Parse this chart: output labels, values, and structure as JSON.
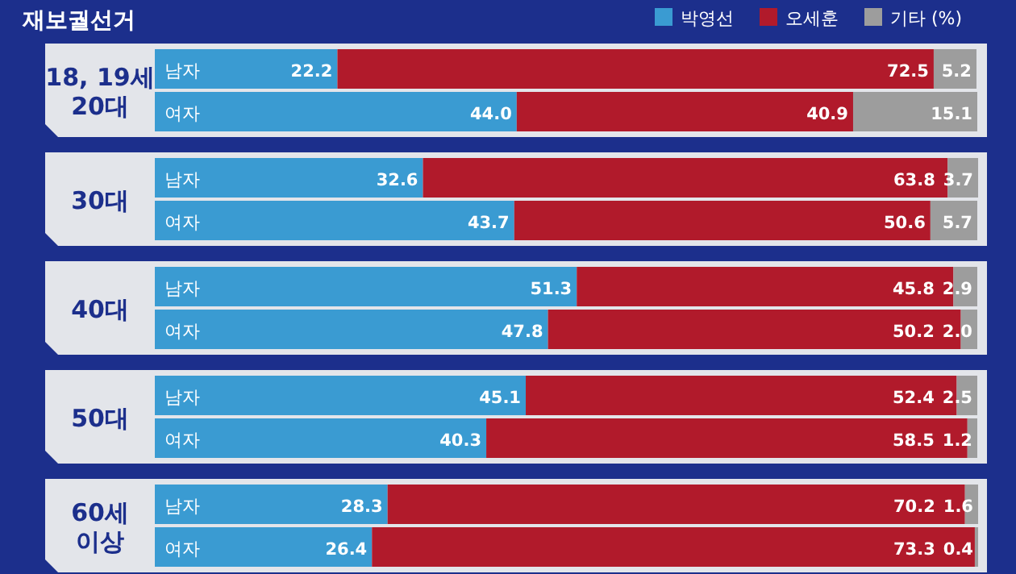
{
  "chart_data": {
    "type": "bar",
    "orientation": "horizontal",
    "stacked": true,
    "legend": "top right",
    "title": "재보궐선거",
    "categories": [
      "남자",
      "여자",
      "남자",
      "여자",
      "남자",
      "여자",
      "남자",
      "여자",
      "남자",
      "여자"
    ],
    "annotations": [
      "18, 19세\n20대",
      "30대",
      "40대",
      "50대",
      "60세\n이상"
    ],
    "xlim": [
      0,
      100
    ],
    "series": [
      {
        "name": "박영선",
        "color": "#3a9bd2",
        "values": [
          22.2,
          44.0,
          32.6,
          43.7,
          51.3,
          47.8,
          45.1,
          40.3,
          28.3,
          26.4
        ],
        "value_labels": [
          "22.2",
          "44.0",
          "32.6",
          "43.7",
          "51.3",
          "47.8",
          "45.1",
          "40.3",
          "28.3",
          "26.4"
        ]
      },
      {
        "name": "오세훈",
        "color": "#b11a2b",
        "values": [
          72.5,
          40.9,
          63.8,
          50.6,
          45.8,
          50.2,
          52.4,
          58.5,
          70.2,
          73.3
        ],
        "value_labels": [
          "72.5",
          "40.9",
          "63.8",
          "50.6",
          "45.8",
          "50.2",
          "52.4",
          "58.5",
          "70.2",
          "73.3"
        ]
      },
      {
        "name": "기타 (%)",
        "color": "#9d9d9d",
        "values": [
          5.2,
          15.1,
          3.7,
          5.7,
          2.9,
          2.0,
          2.5,
          1.2,
          1.6,
          0.4
        ],
        "value_labels": [
          "5.2",
          "15.1",
          "3.7",
          "5.7",
          "2.9",
          "2.0",
          "2.5",
          "1.2",
          "1.6",
          "0.4"
        ]
      }
    ]
  }
}
